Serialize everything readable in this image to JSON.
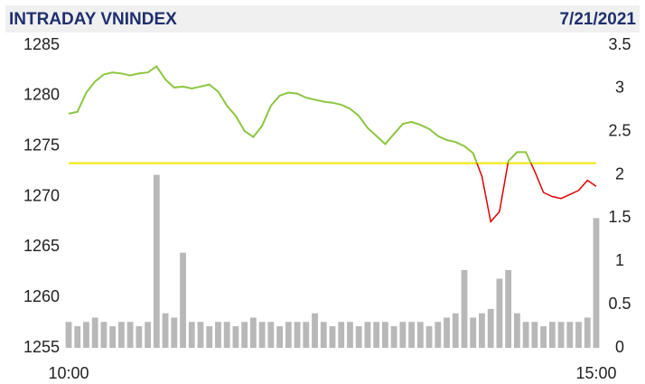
{
  "chart_data": {
    "type": "line",
    "title": "INTRADAY VNINDEX",
    "date": "7/21/2021",
    "categories": [
      "10:00",
      null,
      null,
      null,
      null,
      null,
      null,
      null,
      null,
      null,
      null,
      null,
      null,
      null,
      null,
      null,
      null,
      null,
      null,
      null,
      null,
      null,
      null,
      null,
      null,
      null,
      null,
      null,
      null,
      null,
      null,
      null,
      null,
      null,
      null,
      null,
      null,
      null,
      null,
      null,
      null,
      null,
      null,
      null,
      null,
      null,
      null,
      null,
      null,
      null,
      null,
      null,
      null,
      null,
      null,
      null,
      null,
      null,
      null,
      null,
      "15:00"
    ],
    "line": {
      "color_above": "#8cc63f",
      "color_below": "#e00000",
      "values": [
        1278.2,
        1278.4,
        1280.3,
        1281.4,
        1282.1,
        1282.3,
        1282.2,
        1282.0,
        1282.2,
        1282.3,
        1282.9,
        1281.6,
        1280.8,
        1280.9,
        1280.7,
        1280.9,
        1281.1,
        1280.4,
        1279.0,
        1278.0,
        1276.5,
        1275.9,
        1277.0,
        1279.0,
        1280.0,
        1280.3,
        1280.2,
        1279.8,
        1279.6,
        1279.4,
        1279.3,
        1279.1,
        1278.7,
        1278.0,
        1276.8,
        1276.0,
        1275.2,
        1276.2,
        1277.2,
        1277.4,
        1277.1,
        1276.7,
        1276.0,
        1275.6,
        1275.4,
        1275.0,
        1274.3,
        1272.0,
        1267.5,
        1268.5,
        1273.5,
        1274.4,
        1274.4,
        1272.5,
        1270.4,
        1270.0,
        1269.8,
        1270.2,
        1270.6,
        1271.6,
        1271.0
      ]
    },
    "volume": {
      "axis": "y2",
      "color": "#b8b8b8",
      "values": [
        0.3,
        0.25,
        0.3,
        0.35,
        0.3,
        0.25,
        0.3,
        0.3,
        0.25,
        0.3,
        2.0,
        0.4,
        0.35,
        1.1,
        0.3,
        0.3,
        0.25,
        0.3,
        0.3,
        0.25,
        0.3,
        0.35,
        0.3,
        0.3,
        0.25,
        0.3,
        0.3,
        0.3,
        0.4,
        0.3,
        0.25,
        0.3,
        0.3,
        0.25,
        0.3,
        0.3,
        0.3,
        0.25,
        0.3,
        0.3,
        0.3,
        0.25,
        0.3,
        0.35,
        0.4,
        0.9,
        0.35,
        0.4,
        0.45,
        0.8,
        0.9,
        0.4,
        0.3,
        0.3,
        0.25,
        0.3,
        0.3,
        0.3,
        0.3,
        0.35,
        1.5
      ]
    },
    "reference_value": 1273.3,
    "reference_color": "#f2e600",
    "ylim": [
      1255,
      1285
    ],
    "yticks": [
      1255,
      1260,
      1265,
      1270,
      1275,
      1280,
      1285
    ],
    "y2lim": [
      0,
      3.5
    ],
    "y2ticks": [
      0,
      0.5,
      1,
      1.5,
      2,
      2.5,
      3,
      3.5
    ],
    "grid": false
  }
}
